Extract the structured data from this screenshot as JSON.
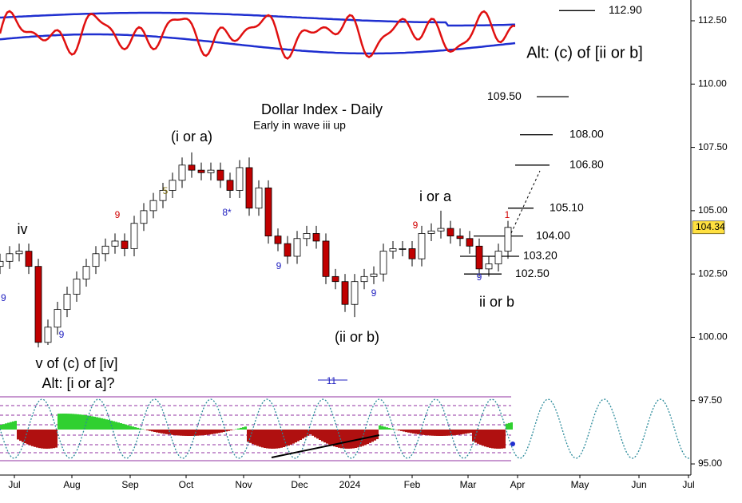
{
  "chart_data": {
    "type": "candlestick",
    "title": "Dollar Index - Daily",
    "subtitle": "Early in wave iii up",
    "x": [
      0,
      12,
      24,
      36,
      48,
      60,
      72,
      84,
      96,
      108,
      120,
      132,
      144,
      156,
      168,
      180,
      192,
      204,
      216,
      228,
      240,
      252,
      264,
      276,
      288,
      300,
      312,
      324,
      336,
      348,
      360,
      372,
      384,
      396,
      408,
      420,
      432,
      444,
      456,
      468,
      480,
      492,
      504,
      516,
      528,
      540,
      552,
      564,
      576,
      588,
      600,
      612,
      624,
      636
    ],
    "open": [
      102.8,
      103.0,
      103.3,
      103.4,
      102.8,
      99.8,
      100.4,
      101.1,
      101.7,
      102.3,
      102.8,
      103.3,
      103.6,
      103.8,
      103.5,
      104.5,
      105.0,
      105.4,
      105.8,
      106.2,
      106.8,
      106.6,
      106.5,
      106.6,
      106.2,
      105.8,
      106.7,
      105.1,
      105.9,
      104.0,
      103.7,
      103.2,
      103.9,
      104.1,
      103.8,
      102.4,
      102.2,
      101.3,
      102.2,
      102.4,
      102.5,
      103.4,
      103.5,
      103.5,
      103.1,
      104.1,
      104.2,
      104.3,
      104.0,
      103.9,
      103.6,
      102.7,
      102.9,
      103.4
    ],
    "high": [
      103.3,
      103.6,
      103.7,
      103.7,
      103.1,
      100.7,
      101.4,
      102.0,
      102.6,
      103.1,
      103.6,
      103.9,
      104.1,
      104.1,
      104.8,
      105.3,
      105.7,
      106.1,
      106.5,
      107.1,
      107.3,
      106.9,
      106.9,
      106.9,
      106.5,
      107.0,
      107.1,
      106.2,
      106.2,
      104.3,
      104.0,
      104.2,
      104.4,
      104.4,
      104.1,
      102.7,
      102.5,
      102.5,
      102.7,
      102.8,
      103.7,
      103.8,
      103.8,
      103.8,
      104.4,
      104.5,
      105.0,
      104.6,
      104.3,
      104.2,
      103.9,
      103.2,
      103.7,
      104.6
    ],
    "low": [
      102.5,
      102.7,
      103.0,
      102.5,
      99.6,
      99.7,
      100.1,
      100.8,
      101.4,
      102.0,
      102.5,
      103.0,
      103.3,
      103.2,
      103.2,
      104.2,
      104.7,
      105.1,
      105.5,
      105.9,
      106.3,
      106.2,
      106.2,
      105.9,
      105.5,
      105.5,
      104.8,
      104.8,
      103.7,
      103.4,
      102.9,
      102.9,
      103.6,
      103.5,
      102.1,
      101.9,
      101.0,
      100.8,
      101.9,
      102.1,
      102.2,
      103.1,
      103.2,
      102.8,
      102.8,
      103.8,
      103.9,
      103.7,
      103.6,
      103.3,
      102.4,
      102.4,
      102.6,
      103.1
    ],
    "close": [
      103.0,
      103.3,
      103.4,
      102.8,
      99.8,
      100.4,
      101.1,
      101.7,
      102.3,
      102.8,
      103.3,
      103.6,
      103.8,
      103.5,
      104.5,
      105.0,
      105.4,
      105.8,
      106.2,
      106.8,
      106.6,
      106.5,
      106.6,
      106.2,
      105.8,
      106.7,
      105.1,
      105.9,
      104.0,
      103.7,
      103.2,
      103.9,
      104.1,
      103.8,
      102.4,
      102.2,
      101.3,
      102.2,
      102.4,
      102.5,
      103.4,
      103.5,
      103.5,
      103.1,
      104.1,
      104.2,
      104.3,
      104.0,
      103.9,
      103.6,
      102.7,
      102.9,
      103.4,
      104.34
    ],
    "up_color": "#ffffff",
    "down_color": "#c00000",
    "xlim": [
      0,
      865
    ],
    "xticks": [
      {
        "value": 18,
        "label": "Jul"
      },
      {
        "value": 90,
        "label": "Aug"
      },
      {
        "value": 163,
        "label": "Sep"
      },
      {
        "value": 233,
        "label": "Oct"
      },
      {
        "value": 305,
        "label": "Nov"
      },
      {
        "value": 375,
        "label": "Dec"
      },
      {
        "value": 438,
        "label": "2024"
      },
      {
        "value": 516,
        "label": "Feb"
      },
      {
        "value": 586,
        "label": "Mar"
      },
      {
        "value": 648,
        "label": "Apr"
      },
      {
        "value": 726,
        "label": "May"
      },
      {
        "value": 800,
        "label": "Jun"
      },
      {
        "value": 862,
        "label": "Jul"
      }
    ],
    "ylim": [
      94.56,
      113.32
    ],
    "yticks": [
      {
        "value": 112.5,
        "label": "112.50"
      },
      {
        "value": 110,
        "label": "110.00"
      },
      {
        "value": 107.5,
        "label": "107.50"
      },
      {
        "value": 105,
        "label": "105.00"
      },
      {
        "value": 102.5,
        "label": "102.50"
      },
      {
        "value": 100,
        "label": "100.00"
      },
      {
        "value": 97.5,
        "label": "97.50"
      },
      {
        "value": 95,
        "label": "95.00"
      }
    ],
    "levels": [
      {
        "value": 112.9,
        "label": "112.90"
      },
      {
        "value": 109.5,
        "label": "109.50"
      },
      {
        "value": 108,
        "label": "108.00"
      },
      {
        "value": 106.8,
        "label": "106.80"
      },
      {
        "value": 105.1,
        "label": "105.10"
      },
      {
        "value": 104,
        "label": "104.00"
      },
      {
        "value": 103.2,
        "label": "103.20"
      },
      {
        "value": 102.5,
        "label": "102.50"
      }
    ],
    "annotations": [
      "(i or a)",
      "i or a",
      "(ii or b)",
      "ii or b",
      "iv",
      "v of (c) of [iv]",
      "Alt: [i or a]?",
      "Alt: (c) of [ii or b]",
      "5",
      "9",
      "8*",
      "9",
      "9",
      "9",
      "9",
      "1",
      "9",
      "11",
      "9"
    ],
    "grid": false
  }
}
